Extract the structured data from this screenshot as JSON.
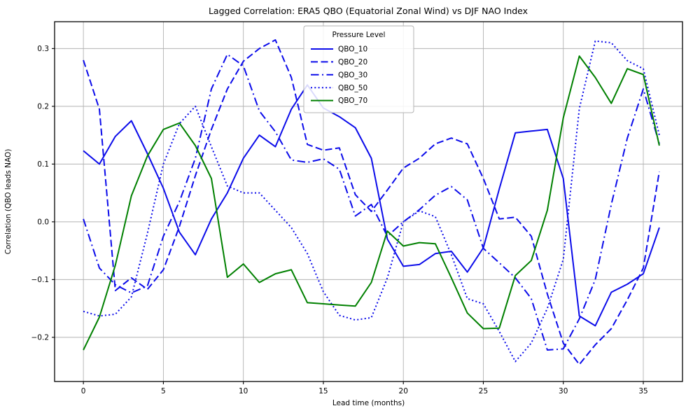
{
  "title": "Lagged Correlation: ERA5 QBO (Equatorial Zonal Wind) vs DJF NAO Index",
  "axes": {
    "xlabel": "Lead time (months)",
    "ylabel": "Correlation (QBO leads NAO)"
  },
  "legend": {
    "title": "Pressure Level",
    "entries": [
      "QBO_10",
      "QBO_20",
      "QBO_30",
      "QBO_50",
      "QBO_70"
    ]
  },
  "colors": {
    "blue_line": "#0b0bea",
    "green_line": "#008000",
    "grid": "#b2b2b2",
    "spine": "#000000",
    "legend_border": "#b3b3b3"
  },
  "chart_data": {
    "type": "line",
    "title": "Lagged Correlation: ERA5 QBO (Equatorial Zonal Wind) vs DJF NAO Index",
    "xlabel": "Lead time (months)",
    "ylabel": "Correlation (QBO leads NAO)",
    "grid": true,
    "legend_position": "upper center",
    "xlim": [
      -1.8,
      37.45
    ],
    "ylim": [
      -0.2765,
      0.3465
    ],
    "x_ticks": [
      0,
      5,
      10,
      15,
      20,
      25,
      30,
      35
    ],
    "y_ticks": [
      -0.2,
      -0.1,
      0.0,
      0.1,
      0.2,
      0.3
    ],
    "x": [
      0,
      1,
      2,
      3,
      4,
      5,
      6,
      7,
      8,
      9,
      10,
      11,
      12,
      13,
      14,
      15,
      16,
      17,
      18,
      19,
      20,
      21,
      22,
      23,
      24,
      25,
      26,
      27,
      28,
      29,
      30,
      31,
      32,
      33,
      34,
      35,
      36
    ],
    "series": [
      {
        "name": "QBO_10",
        "style": "solid",
        "color": "#0b0bea",
        "values": [
          0.123,
          0.1,
          0.148,
          0.175,
          0.118,
          0.058,
          -0.018,
          -0.057,
          0.005,
          0.05,
          0.11,
          0.15,
          0.13,
          0.195,
          0.237,
          0.197,
          0.182,
          0.163,
          0.11,
          -0.03,
          -0.077,
          -0.074,
          -0.055,
          -0.051,
          -0.087,
          -0.045,
          0.057,
          0.154,
          0.157,
          0.16,
          0.075,
          -0.163,
          -0.18,
          -0.122,
          -0.108,
          -0.09,
          -0.01
        ]
      },
      {
        "name": "QBO_20",
        "style": "dashed",
        "color": "#0b0bea",
        "values": [
          0.28,
          0.195,
          -0.119,
          -0.097,
          -0.117,
          -0.083,
          -0.008,
          0.08,
          0.16,
          0.23,
          0.278,
          0.3,
          0.315,
          0.25,
          0.134,
          0.124,
          0.128,
          0.047,
          0.018,
          0.055,
          0.093,
          0.11,
          0.135,
          0.145,
          0.135,
          0.075,
          0.005,
          0.008,
          -0.025,
          -0.125,
          -0.21,
          -0.247,
          -0.213,
          -0.185,
          -0.135,
          -0.08,
          0.087
        ]
      },
      {
        "name": "QBO_30",
        "style": "dashdot",
        "color": "#0b0bea",
        "values": [
          0.005,
          -0.08,
          -0.109,
          -0.123,
          -0.111,
          -0.025,
          0.035,
          0.11,
          0.23,
          0.29,
          0.27,
          0.192,
          0.156,
          0.107,
          0.103,
          0.109,
          0.091,
          0.01,
          0.03,
          -0.025,
          0.0,
          0.021,
          0.046,
          0.061,
          0.038,
          -0.046,
          -0.071,
          -0.097,
          -0.133,
          -0.222,
          -0.22,
          -0.168,
          -0.1,
          0.03,
          0.145,
          0.23,
          0.135
        ]
      },
      {
        "name": "QBO_50",
        "style": "dotted",
        "color": "#0b0bea",
        "values": [
          -0.155,
          -0.163,
          -0.16,
          -0.13,
          -0.02,
          0.1,
          0.17,
          0.2,
          0.13,
          0.062,
          0.05,
          0.05,
          0.02,
          -0.01,
          -0.055,
          -0.121,
          -0.162,
          -0.17,
          -0.166,
          -0.097,
          0.0,
          0.019,
          0.009,
          -0.057,
          -0.133,
          -0.142,
          -0.19,
          -0.242,
          -0.21,
          -0.15,
          -0.065,
          0.196,
          0.313,
          0.31,
          0.279,
          0.265,
          0.15
        ]
      },
      {
        "name": "QBO_70",
        "style": "solid",
        "color": "#008000",
        "values": [
          -0.222,
          -0.165,
          -0.075,
          0.045,
          0.114,
          0.16,
          0.171,
          0.132,
          0.075,
          -0.096,
          -0.073,
          -0.105,
          -0.09,
          -0.083,
          -0.14,
          -0.142,
          -0.144,
          -0.146,
          -0.105,
          -0.016,
          -0.042,
          -0.036,
          -0.038,
          -0.097,
          -0.158,
          -0.185,
          -0.184,
          -0.093,
          -0.067,
          0.02,
          0.18,
          0.287,
          0.25,
          0.205,
          0.265,
          0.255,
          0.132
        ]
      }
    ]
  }
}
